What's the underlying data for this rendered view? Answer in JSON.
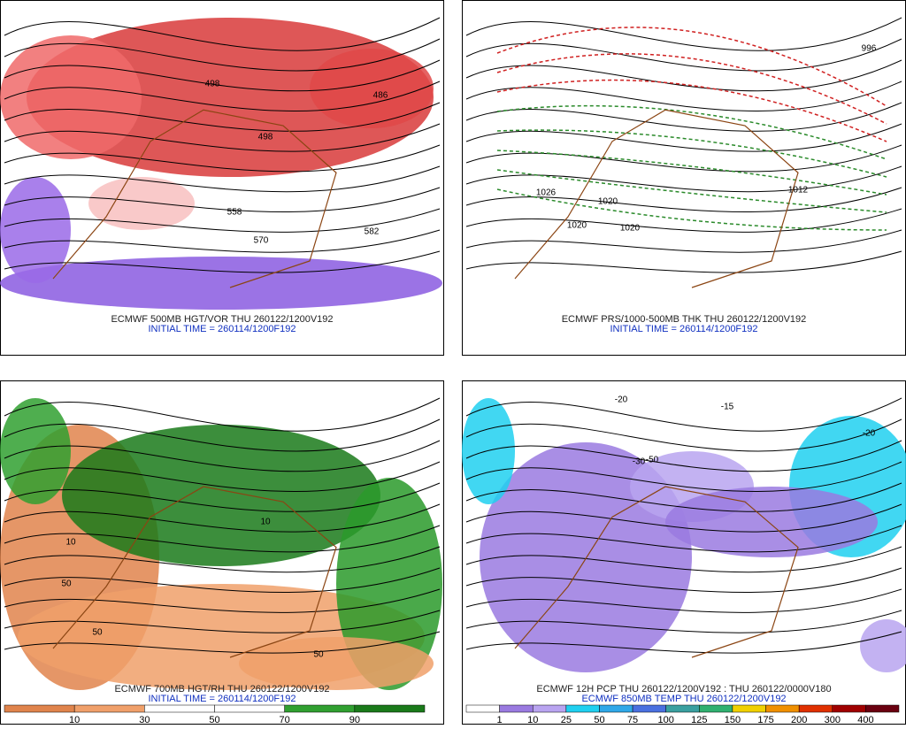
{
  "panels": [
    {
      "caption": "ECMWF 500MB HGT/VOR THU 260122/1200V192",
      "subcaption": "INITIAL TIME = 260114/1200F192",
      "contour_labels": [
        "498",
        "486",
        "498",
        "558",
        "570",
        "582"
      ]
    },
    {
      "caption": "ECMWF PRS/1000-500MB THK THU 260122/1200V192",
      "subcaption": "INITIAL TIME = 260114/1200F192",
      "contour_labels": [
        "1026",
        "1020",
        "1020",
        "1020",
        "1012",
        "996"
      ]
    },
    {
      "caption": "ECMWF 700MB HGT/RH THU 260122/1200V192",
      "subcaption": "INITIAL TIME = 260114/1200F192",
      "contour_labels": [
        "10",
        "50",
        "50",
        "10",
        "50"
      ],
      "colorbar": {
        "labels": [
          10,
          30,
          50,
          70,
          90
        ],
        "colors": [
          "#e0844c",
          "#f0a06a",
          "#ffffff",
          "#ffffff",
          "#30a030",
          "#1a7a1a"
        ]
      }
    },
    {
      "caption": "ECMWF 12H PCP THU 260122/1200V192 : THU 260122/0000V180",
      "subcaption": "ECMWF 850MB TEMP THU 260122/1200V192",
      "contour_labels": [
        "-20",
        "-30",
        "-50",
        "-20",
        "-15"
      ],
      "colorbar": {
        "labels": [
          1,
          10,
          25,
          50,
          75,
          100,
          125,
          150,
          175,
          200,
          300,
          400
        ],
        "colors": [
          "#ffffff",
          "#9a7ae0",
          "#b9a4f0",
          "#20d0f0",
          "#30a8e8",
          "#4a70e0",
          "#3aa0a0",
          "#30b070",
          "#f0d000",
          "#f09000",
          "#e03000",
          "#a00000",
          "#6a0010"
        ]
      }
    }
  ]
}
